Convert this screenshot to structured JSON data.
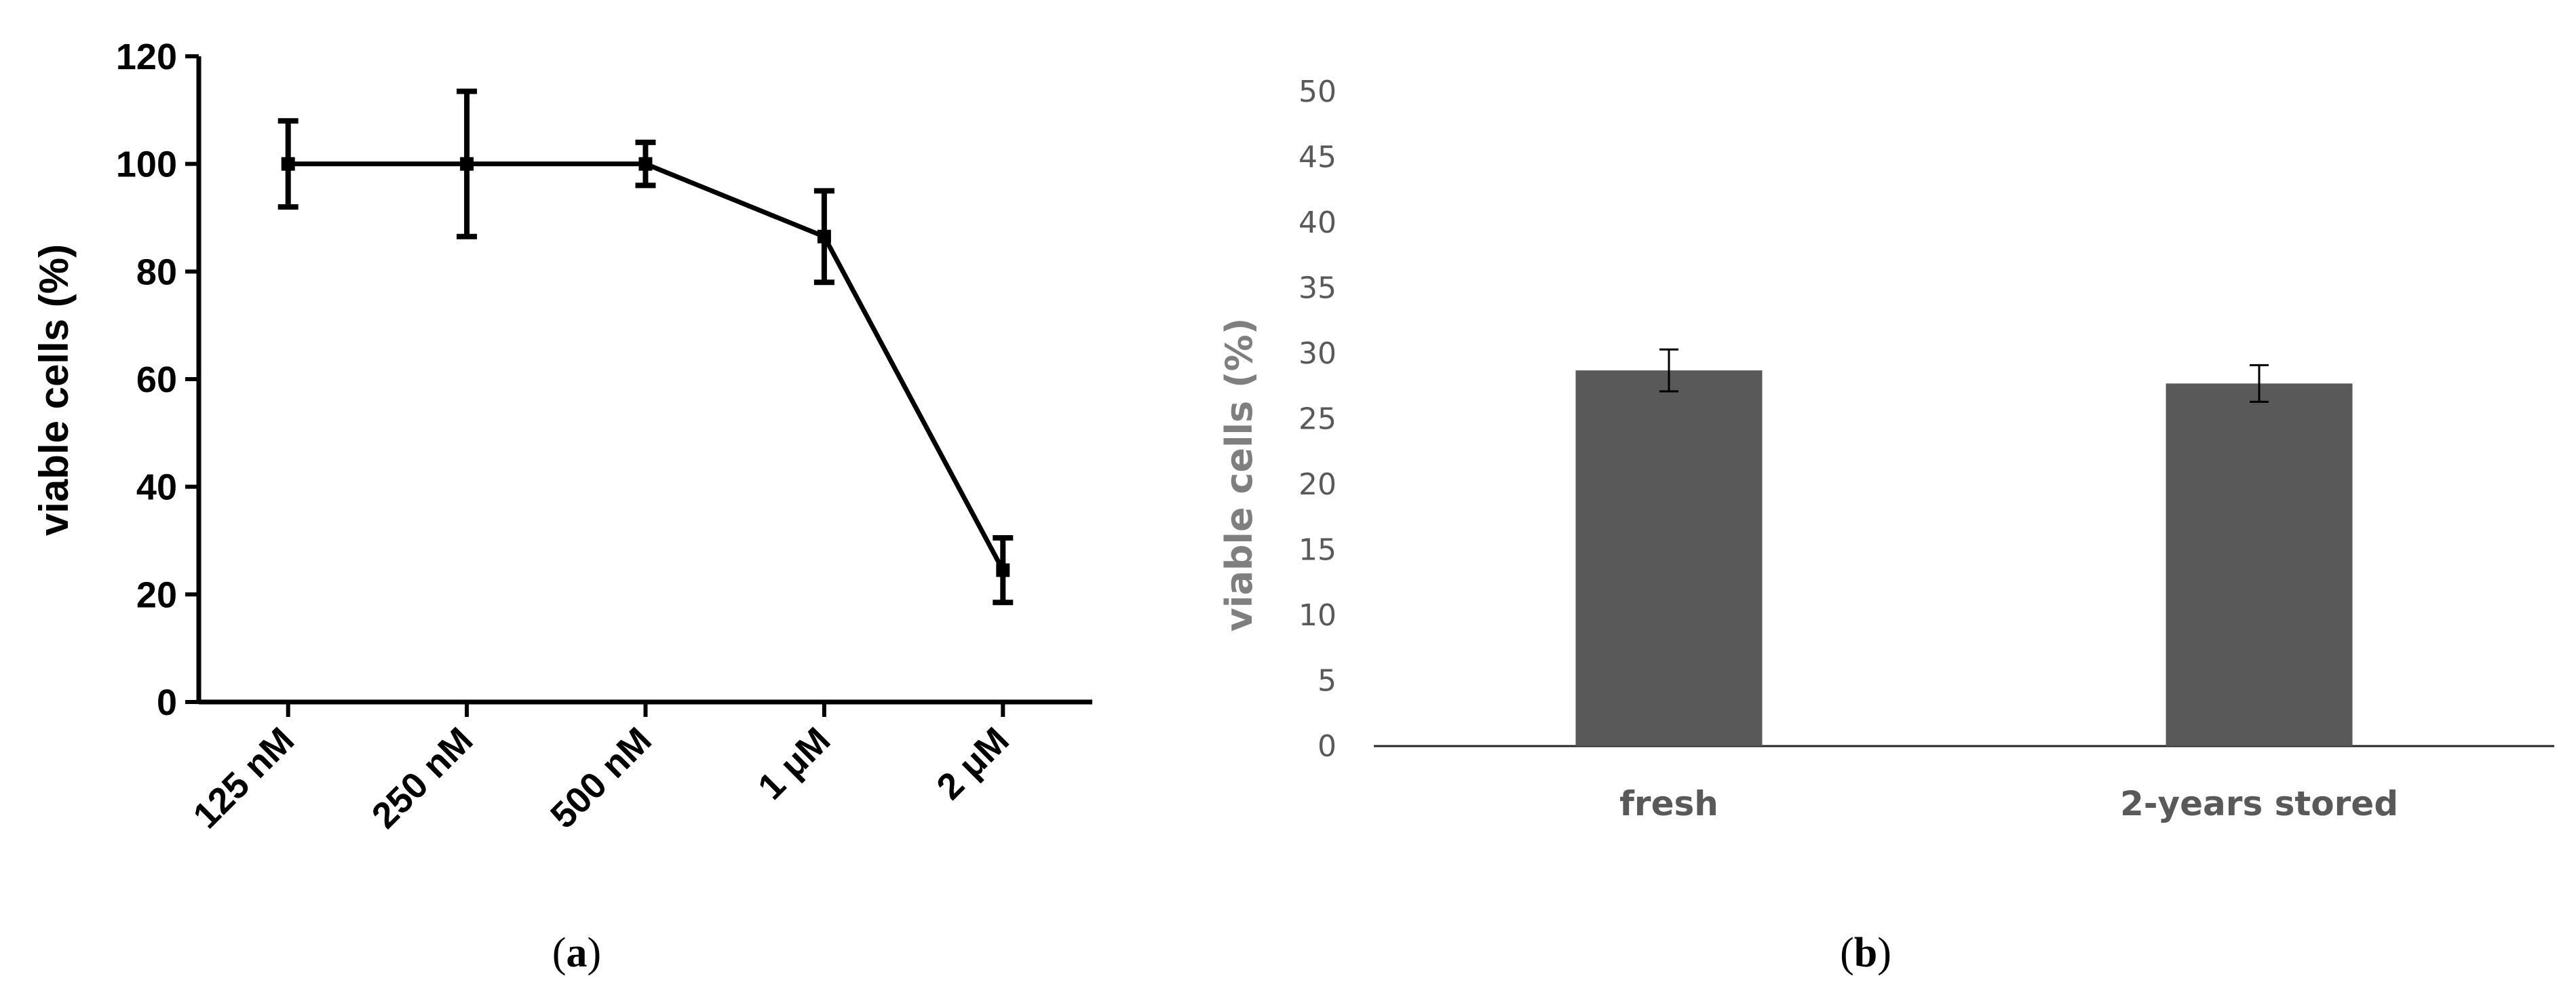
{
  "chart_data": [
    {
      "type": "line",
      "panel_label": "a",
      "ylabel": "viable cells (%)",
      "xlabel": "",
      "ylim": [
        0,
        120
      ],
      "yticks": [
        0,
        20,
        40,
        60,
        80,
        100,
        120
      ],
      "categories": [
        "125 nM",
        "250 nM",
        "500 nM",
        "1 μM",
        "2 μM"
      ],
      "series": [
        {
          "values": [
            100,
            100,
            100,
            86.5,
            24.5
          ],
          "error": [
            8,
            13.5,
            4,
            8.5,
            6
          ]
        }
      ],
      "color": "#000000",
      "grid": false,
      "legend": "none"
    },
    {
      "type": "bar",
      "panel_label": "b",
      "ylabel": "viable cells (%)",
      "xlabel": "",
      "ylim": [
        0,
        50
      ],
      "yticks": [
        0,
        5,
        10,
        15,
        20,
        25,
        30,
        35,
        40,
        45,
        50
      ],
      "categories": [
        "fresh",
        "2-years stored"
      ],
      "values": [
        28.7,
        27.7
      ],
      "error": [
        1.6,
        1.4
      ],
      "color": "#595959",
      "grid": false,
      "legend": "none"
    }
  ]
}
